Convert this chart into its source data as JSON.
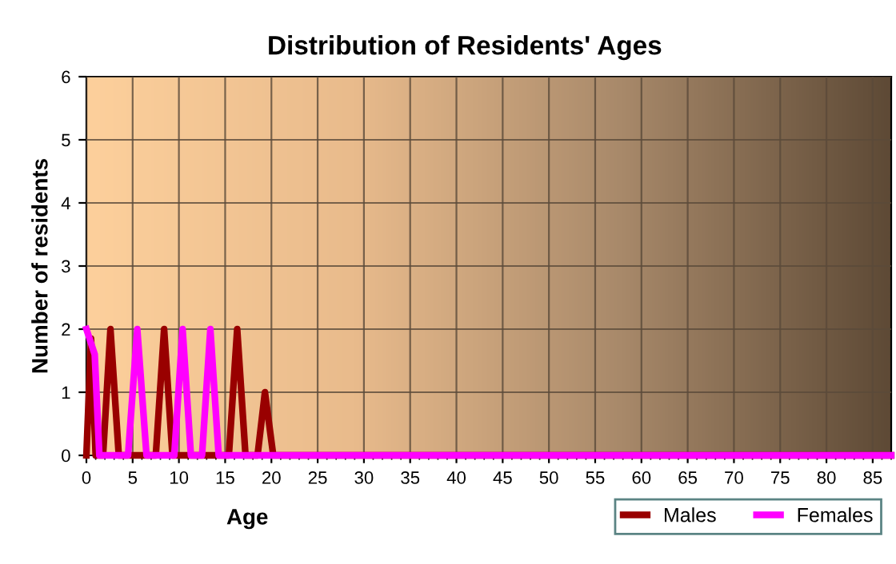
{
  "chart_data": {
    "type": "line",
    "title": "Distribution of Residents' Ages",
    "xlabel": "Age",
    "ylabel": "Number of residents",
    "xlim": [
      0,
      87
    ],
    "xticks": [
      0,
      5,
      10,
      15,
      20,
      25,
      30,
      35,
      40,
      45,
      50,
      55,
      60,
      65,
      70,
      75,
      80,
      85
    ],
    "ylim": [
      0,
      6
    ],
    "yticks": [
      0,
      1,
      2,
      3,
      4,
      5,
      6
    ],
    "grid": true,
    "legend": "bottom right",
    "marker": "none",
    "line_style": "solid",
    "series": [
      {
        "name": "Males",
        "color": "#990000",
        "x": [
          0,
          0.5,
          1,
          1.8,
          2.6,
          3.5,
          7.5,
          8.4,
          9.3,
          15.4,
          16.3,
          17.2,
          18.5,
          19.3,
          20.2,
          87
        ],
        "values": [
          0,
          1.85,
          0,
          0,
          2,
          0,
          0,
          2,
          0,
          0,
          2,
          0,
          0,
          1,
          0,
          0
        ]
      },
      {
        "name": "Females",
        "color": "#ff00ff",
        "x": [
          0,
          0.9,
          1.4,
          4.5,
          5.5,
          6.5,
          9.5,
          10.4,
          11.3,
          12.5,
          13.4,
          14.3,
          87
        ],
        "values": [
          2,
          1.6,
          0,
          0,
          2,
          0,
          0,
          2,
          0,
          0,
          2,
          0,
          0
        ]
      }
    ]
  }
}
